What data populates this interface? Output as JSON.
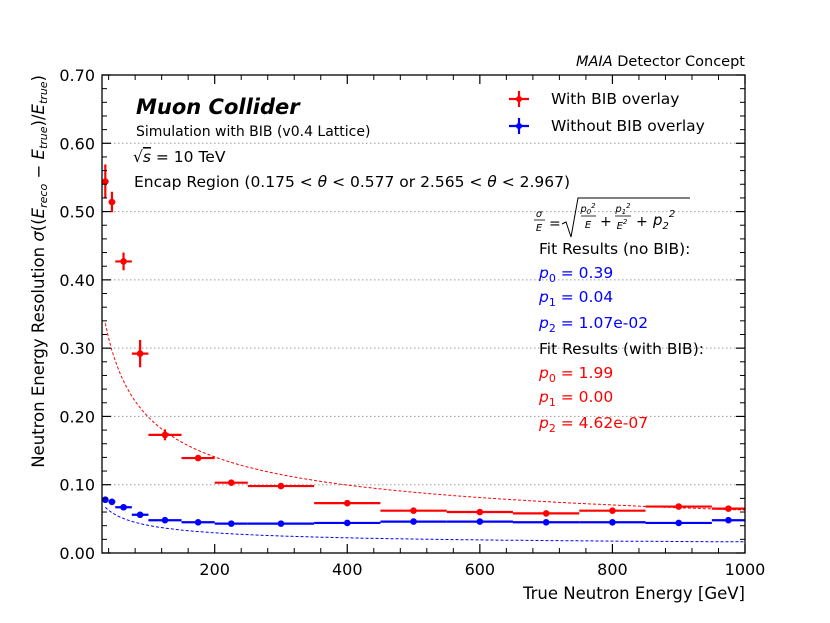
{
  "chart_data": {
    "type": "scatter",
    "header_right_italic": "MAIA",
    "header_right_rest": "Detector Concept",
    "title": "Muon Collider",
    "subtitle": "Simulation with BIB (v0.4 Lattice)",
    "energy_label": "√s = 10 TeV",
    "region_label": "Encap Region (0.175 < θ < 0.577 or 2.565 < θ < 2.967)",
    "xlabel": "True Neutron Energy [GeV]",
    "ylabel": "Neutron Energy Resolution σ((E_reco − E_true)/E_true)",
    "xlim": [
      30,
      1000
    ],
    "ylim": [
      0,
      0.7
    ],
    "x_ticks": [
      200,
      400,
      600,
      800,
      1000
    ],
    "x_tick_labels": [
      "200",
      "400",
      "600",
      "800",
      "1000"
    ],
    "y_ticks": [
      0.0,
      0.1,
      0.2,
      0.3,
      0.4,
      0.5,
      0.6,
      0.7
    ],
    "y_tick_labels": [
      "0.00",
      "0.10",
      "0.20",
      "0.30",
      "0.40",
      "0.50",
      "0.60",
      "0.70"
    ],
    "grid": "horizontal dotted",
    "legend_position": "top-right",
    "legend": [
      "With BIB overlay",
      "Without BIB overlay"
    ],
    "colors": {
      "with_bib": "#ff0000",
      "without_bib": "#0000ff"
    },
    "series": [
      {
        "name": "With BIB overlay",
        "points": [
          {
            "x": 35,
            "xlo": 30,
            "xhi": 40,
            "y": 0.544,
            "yerr": 0.025
          },
          {
            "x": 45,
            "xlo": 40,
            "xhi": 50,
            "y": 0.514,
            "yerr": 0.015
          },
          {
            "x": 62.5,
            "xlo": 50,
            "xhi": 75,
            "y": 0.427,
            "yerr": 0.013
          },
          {
            "x": 87.5,
            "xlo": 75,
            "xhi": 100,
            "y": 0.292,
            "yerr": 0.02
          },
          {
            "x": 125,
            "xlo": 100,
            "xhi": 150,
            "y": 0.173,
            "yerr": 0.008
          },
          {
            "x": 175,
            "xlo": 150,
            "xhi": 200,
            "y": 0.139,
            "yerr": 0.004
          },
          {
            "x": 225,
            "xlo": 200,
            "xhi": 250,
            "y": 0.103,
            "yerr": 0.003
          },
          {
            "x": 300,
            "xlo": 250,
            "xhi": 350,
            "y": 0.098,
            "yerr": 0.003
          },
          {
            "x": 400,
            "xlo": 350,
            "xhi": 450,
            "y": 0.073,
            "yerr": 0.002
          },
          {
            "x": 500,
            "xlo": 450,
            "xhi": 550,
            "y": 0.062,
            "yerr": 0.002
          },
          {
            "x": 600,
            "xlo": 550,
            "xhi": 650,
            "y": 0.06,
            "yerr": 0.002
          },
          {
            "x": 700,
            "xlo": 650,
            "xhi": 750,
            "y": 0.058,
            "yerr": 0.002
          },
          {
            "x": 800,
            "xlo": 750,
            "xhi": 850,
            "y": 0.062,
            "yerr": 0.002
          },
          {
            "x": 900,
            "xlo": 850,
            "xhi": 950,
            "y": 0.068,
            "yerr": 0.002
          },
          {
            "x": 975,
            "xlo": 950,
            "xhi": 1000,
            "y": 0.065,
            "yerr": 0.002
          }
        ]
      },
      {
        "name": "Without BIB overlay",
        "points": [
          {
            "x": 35,
            "xlo": 30,
            "xhi": 40,
            "y": 0.078,
            "yerr": 0.002
          },
          {
            "x": 45,
            "xlo": 40,
            "xhi": 50,
            "y": 0.075,
            "yerr": 0.002
          },
          {
            "x": 62.5,
            "xlo": 50,
            "xhi": 75,
            "y": 0.067,
            "yerr": 0.002
          },
          {
            "x": 87.5,
            "xlo": 75,
            "xhi": 100,
            "y": 0.056,
            "yerr": 0.002
          },
          {
            "x": 125,
            "xlo": 100,
            "xhi": 150,
            "y": 0.048,
            "yerr": 0.001
          },
          {
            "x": 175,
            "xlo": 150,
            "xhi": 200,
            "y": 0.045,
            "yerr": 0.001
          },
          {
            "x": 225,
            "xlo": 200,
            "xhi": 250,
            "y": 0.043,
            "yerr": 0.001
          },
          {
            "x": 300,
            "xlo": 250,
            "xhi": 350,
            "y": 0.043,
            "yerr": 0.001
          },
          {
            "x": 400,
            "xlo": 350,
            "xhi": 450,
            "y": 0.044,
            "yerr": 0.001
          },
          {
            "x": 500,
            "xlo": 450,
            "xhi": 550,
            "y": 0.046,
            "yerr": 0.001
          },
          {
            "x": 600,
            "xlo": 550,
            "xhi": 650,
            "y": 0.046,
            "yerr": 0.001
          },
          {
            "x": 700,
            "xlo": 650,
            "xhi": 750,
            "y": 0.045,
            "yerr": 0.001
          },
          {
            "x": 800,
            "xlo": 750,
            "xhi": 850,
            "y": 0.045,
            "yerr": 0.001
          },
          {
            "x": 900,
            "xlo": 850,
            "xhi": 950,
            "y": 0.044,
            "yerr": 0.001
          },
          {
            "x": 975,
            "xlo": 950,
            "xhi": 1000,
            "y": 0.048,
            "yerr": 0.001
          }
        ]
      }
    ],
    "fit_formula": "σ/E = √(p0²/E + p1²/E² + p2²)",
    "fit_no_bib": {
      "heading": "Fit Results (no BIB):",
      "p0": "p0 = 0.39",
      "p1": "p1 = 0.04",
      "p2": "p2 = 1.07e-02",
      "values": {
        "p0": 0.39,
        "p1": 0.04,
        "p2": 0.0107
      }
    },
    "fit_with_bib": {
      "heading": "Fit Results (with BIB):",
      "p0": "p0 = 1.99",
      "p1": "p1 = 0.00",
      "p2": "p2 = 4.62e-07",
      "values": {
        "p0": 1.99,
        "p1": 0.0,
        "p2": 4.62e-07
      }
    }
  }
}
